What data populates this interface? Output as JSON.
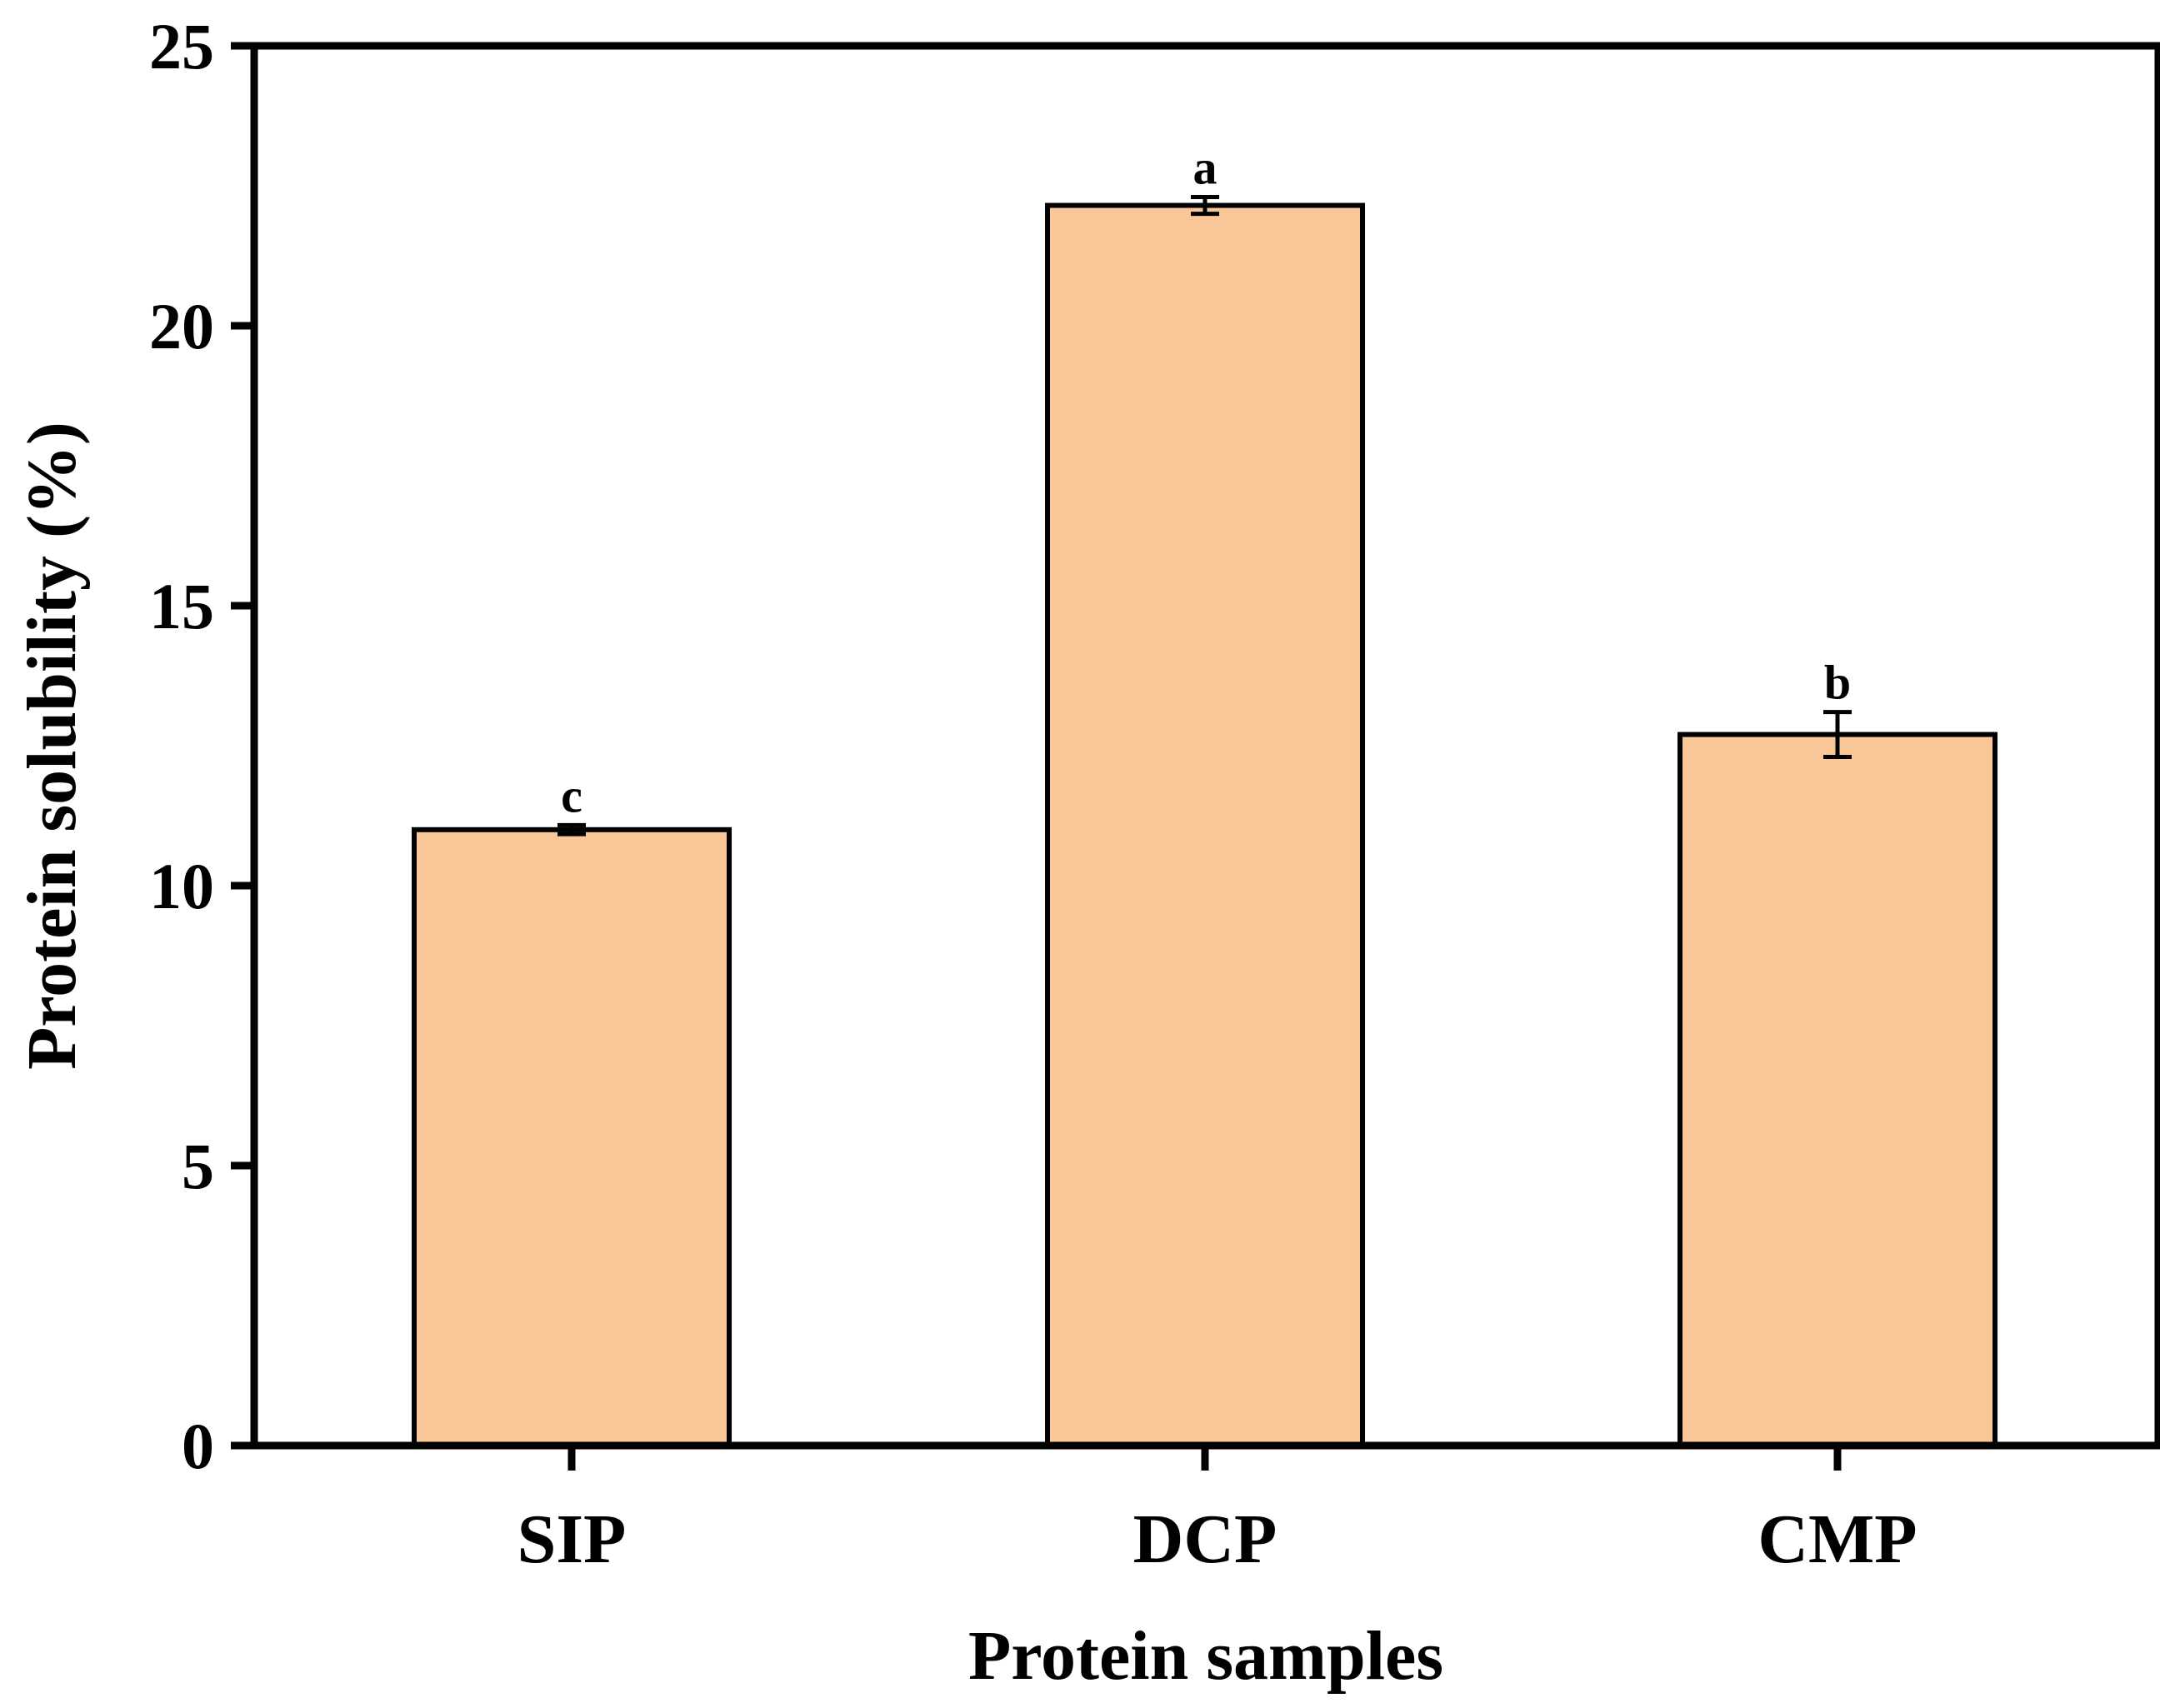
{
  "chart_data": {
    "type": "bar",
    "title": "",
    "xlabel": "Protein samples",
    "ylabel": "Protein solubility (%)",
    "ylim": [
      0,
      25
    ],
    "yticks": [
      "0",
      "5",
      "10",
      "15",
      "20",
      "25"
    ],
    "categories": [
      "SIP",
      "DCP",
      "CMP"
    ],
    "values": [
      11.0,
      22.15,
      12.7
    ],
    "errors": [
      0.08,
      0.15,
      0.4
    ],
    "significance": [
      "c",
      "a",
      "b"
    ],
    "bar_color": "#FAC898",
    "edge_color": "#000000"
  }
}
